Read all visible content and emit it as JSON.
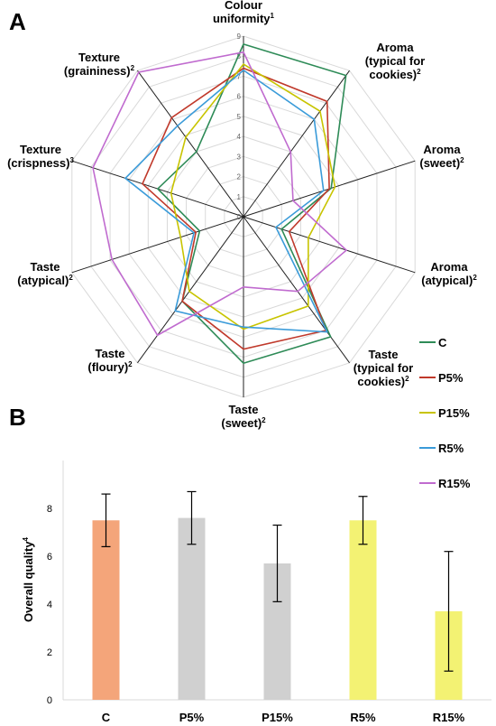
{
  "chart_data": [
    {
      "panel": "A",
      "type": "radar",
      "rmax": 9,
      "ticks": [
        "0",
        "1",
        "2",
        "3",
        "4",
        "5",
        "6",
        "7",
        "8",
        "9"
      ],
      "axes": [
        {
          "lines": [
            "Colour",
            "uniformity"
          ],
          "sup": "1"
        },
        {
          "lines": [
            "Aroma",
            "(typical for",
            "cookies)"
          ],
          "sup": "2"
        },
        {
          "lines": [
            "Aroma",
            "(sweet)"
          ],
          "sup": "2"
        },
        {
          "lines": [
            "Aroma",
            "(atypical)"
          ],
          "sup": "2"
        },
        {
          "lines": [
            "Taste",
            "(typical for",
            "cookies)"
          ],
          "sup": "2"
        },
        {
          "lines": [
            "Taste",
            "(sweet)"
          ],
          "sup": "2"
        },
        {
          "lines": [
            "Taste",
            "(floury)"
          ],
          "sup": "2"
        },
        {
          "lines": [
            "Taste",
            "(atypical)"
          ],
          "sup": "2"
        },
        {
          "lines": [
            "Texture",
            "(crispness)"
          ],
          "sup": "3"
        },
        {
          "lines": [
            "Texture",
            "(graininess)"
          ],
          "sup": "2"
        }
      ],
      "series": [
        {
          "name": "C",
          "color": "#2e8b57",
          "values": [
            8.6,
            8.7,
            4.6,
            2.0,
            7.4,
            7.3,
            5.2,
            2.3,
            4.5,
            4.0
          ]
        },
        {
          "name": "P5%",
          "color": "#c0392b",
          "values": [
            7.4,
            7.1,
            4.5,
            2.4,
            7.0,
            6.6,
            5.2,
            2.5,
            5.3,
            6.1
          ]
        },
        {
          "name": "P15%",
          "color": "#c8c400",
          "values": [
            7.6,
            6.5,
            4.8,
            3.4,
            5.5,
            5.6,
            4.6,
            3.3,
            3.8,
            4.9
          ]
        },
        {
          "name": "R5%",
          "color": "#3a9bd9",
          "values": [
            7.3,
            6.0,
            4.2,
            1.7,
            7.1,
            5.5,
            5.8,
            2.6,
            6.2,
            5.6
          ]
        },
        {
          "name": "R15%",
          "color": "#c06bcf",
          "values": [
            8.2,
            4.0,
            2.6,
            5.4,
            4.6,
            3.5,
            7.3,
            6.9,
            7.9,
            8.9
          ]
        }
      ]
    },
    {
      "panel": "B",
      "type": "bar",
      "categories": [
        "C",
        "P5%",
        "P15%",
        "R5%",
        "R15%"
      ],
      "values": [
        7.5,
        7.6,
        5.7,
        7.5,
        3.7
      ],
      "errors": [
        1.1,
        1.1,
        1.6,
        1.0,
        2.5
      ],
      "colors": [
        "#f4a57a",
        "#d0d0d0",
        "#d0d0d0",
        "#f3f273",
        "#f3f273"
      ],
      "ylabel": "Overall quality",
      "ylabel_sup": "4",
      "ylim": [
        0,
        10
      ],
      "yticks": [
        "0",
        "2",
        "4",
        "6",
        "8"
      ]
    }
  ]
}
